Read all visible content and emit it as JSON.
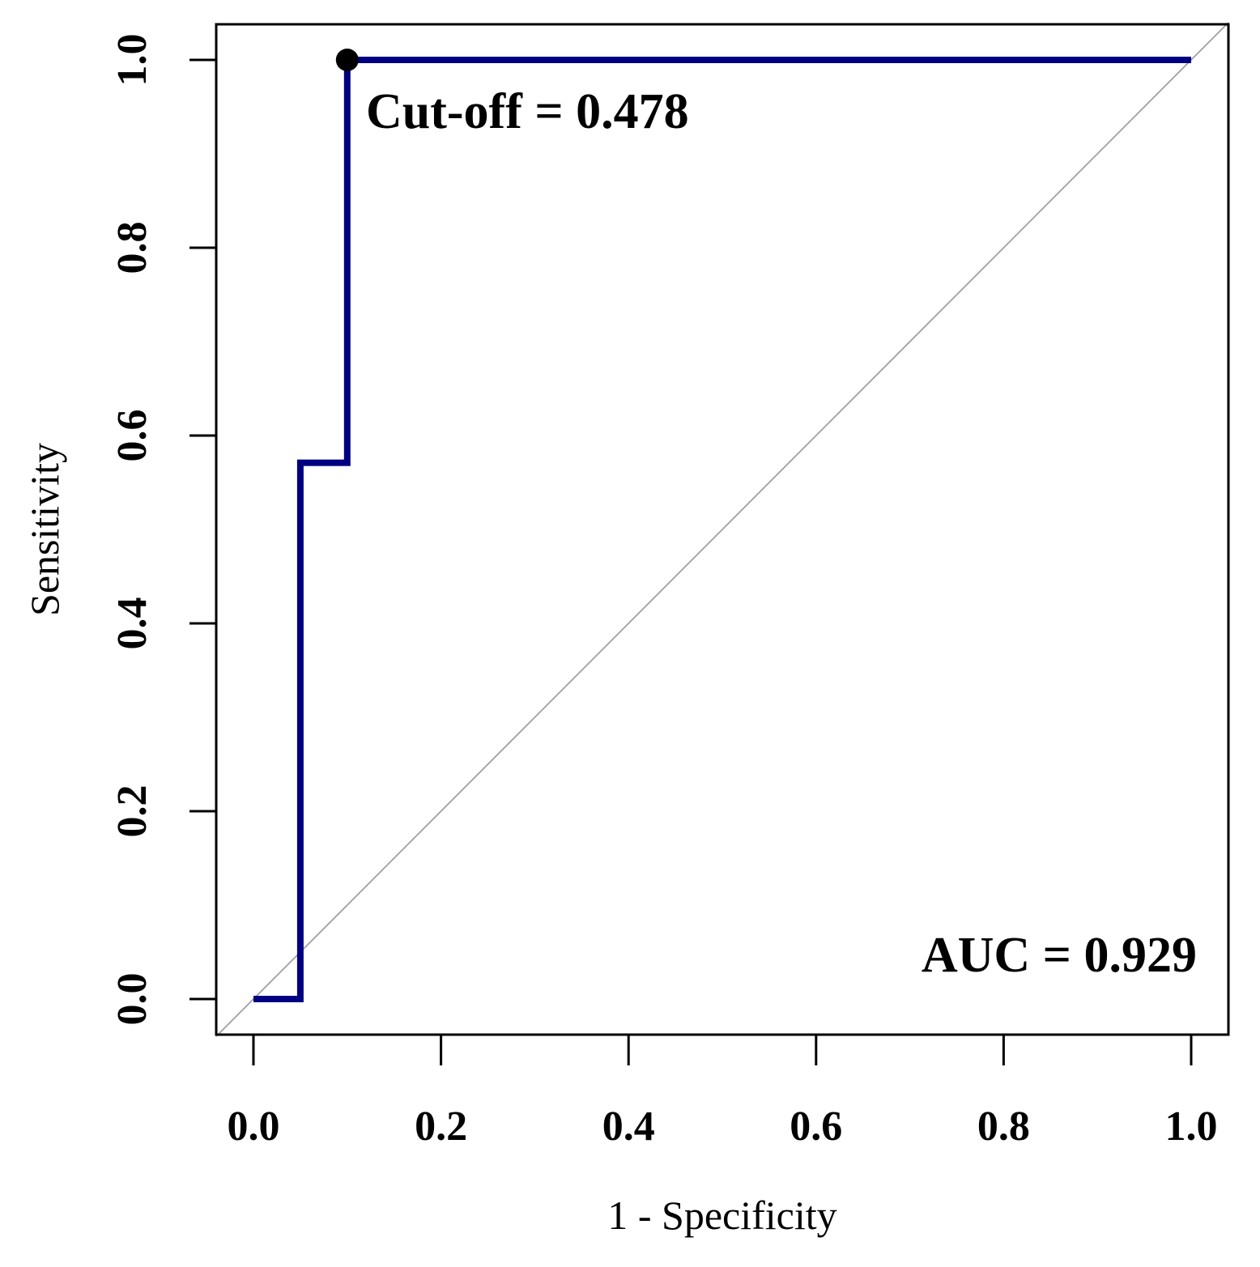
{
  "chart_data": {
    "type": "line",
    "title": "",
    "xlabel": "1 - Specificity",
    "ylabel": "Sensitivity",
    "xlim": [
      0.0,
      1.0
    ],
    "ylim": [
      0.0,
      1.0
    ],
    "x_ticks": [
      0.0,
      0.2,
      0.4,
      0.6,
      0.8,
      1.0
    ],
    "y_ticks": [
      0.0,
      0.2,
      0.4,
      0.6,
      0.8,
      1.0
    ],
    "x_tick_labels": [
      "0.0",
      "0.2",
      "0.4",
      "0.6",
      "0.8",
      "1.0"
    ],
    "y_tick_labels": [
      "0.0",
      "0.2",
      "0.4",
      "0.6",
      "0.8",
      "1.0"
    ],
    "grid": false,
    "series": [
      {
        "name": "ROC curve",
        "color": "#000080",
        "x": [
          0.0,
          0.05,
          0.05,
          0.1,
          0.1,
          1.0
        ],
        "y": [
          0.0,
          0.0,
          0.571,
          0.571,
          1.0,
          1.0
        ]
      }
    ],
    "reference_line": {
      "name": "chance diagonal",
      "color": "#a0a0a0",
      "x": [
        0.0,
        1.0
      ],
      "y": [
        0.0,
        1.0
      ]
    },
    "highlight_point": {
      "x": 0.1,
      "y": 1.0,
      "color": "#000000"
    },
    "annotations": {
      "cutoff": "Cut-off = 0.478",
      "auc": "AUC = 0.929"
    }
  }
}
